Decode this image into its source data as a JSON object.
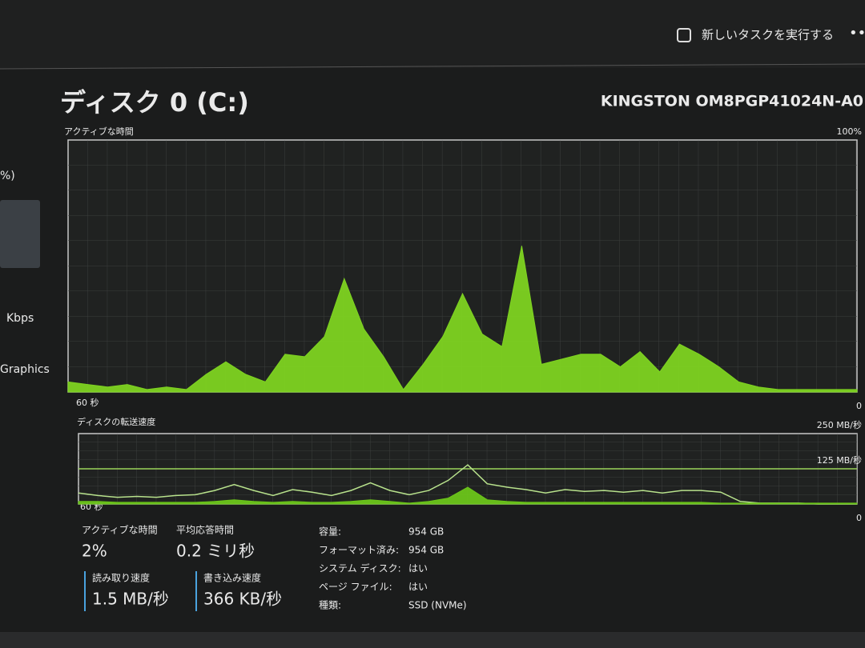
{
  "header": {
    "new_task": "新しいタスクを実行する"
  },
  "sidebar": {
    "items": [
      "%)",
      "Kbps",
      "Graphics"
    ]
  },
  "disk": {
    "title": "ディスク 0 (C:)",
    "model": "KINGSTON OM8PGP41024N-A0"
  },
  "active_time_chart": {
    "type": "area",
    "label": "アクティブな時間",
    "time_label": "60 秒",
    "ylim": [
      0,
      100
    ],
    "yticks": [
      0,
      {
        "value": 100,
        "label": "100%"
      }
    ],
    "series": [
      {
        "name": "アクティブな時間",
        "color": "#7ed321",
        "values": [
          4,
          3,
          2,
          3,
          1,
          2,
          1,
          7,
          12,
          7,
          4,
          15,
          14,
          22,
          45,
          25,
          14,
          1,
          11,
          22,
          39,
          23,
          18,
          58,
          11,
          13,
          15,
          15,
          10,
          16,
          8,
          19,
          15,
          10,
          4,
          2,
          1,
          1,
          1,
          1,
          1
        ]
      }
    ]
  },
  "transfer_chart": {
    "type": "line",
    "label": "ディスクの転送速度",
    "time_label": "60 秒",
    "ylim": [
      0,
      250
    ],
    "yticks": [
      0,
      {
        "value": 125,
        "label": "125 MB/秒"
      },
      {
        "value": 250,
        "label": "250 MB/秒"
      }
    ],
    "series": [
      {
        "name": "読み取り速度",
        "color": "#b8e28c",
        "values": [
          39,
          30,
          24,
          27,
          24,
          30,
          33,
          48,
          69,
          48,
          30,
          51,
          42,
          30,
          48,
          75,
          48,
          33,
          48,
          84,
          139,
          72,
          60,
          51,
          39,
          51,
          45,
          48,
          42,
          48,
          39,
          48,
          48,
          42,
          9,
          3,
          3,
          3,
          0,
          0,
          0
        ]
      },
      {
        "name": "書き込み速度",
        "color": "#6cc51a",
        "values": [
          9,
          9,
          6,
          6,
          6,
          6,
          6,
          9,
          15,
          9,
          6,
          9,
          6,
          6,
          9,
          15,
          9,
          3,
          9,
          21,
          60,
          15,
          9,
          6,
          6,
          6,
          6,
          6,
          6,
          6,
          6,
          6,
          6,
          3,
          3,
          3,
          3,
          3,
          3,
          3,
          3
        ]
      }
    ]
  },
  "stats": [
    {
      "label": "アクティブな時間",
      "value": "2%"
    },
    {
      "label": "平均応答時間",
      "value": "0.2 ミリ秒"
    },
    {
      "label": "読み取り速度",
      "value": "1.5 MB/秒"
    },
    {
      "label": "書き込み速度",
      "value": "366 KB/秒"
    }
  ],
  "properties": [
    [
      "容量:",
      "954 GB"
    ],
    [
      "フォーマット済み:",
      "954 GB"
    ],
    [
      "システム ディスク:",
      "はい"
    ],
    [
      "ページ ファイル:",
      "はい"
    ],
    [
      "種類:",
      "SSD (NVMe)"
    ]
  ]
}
